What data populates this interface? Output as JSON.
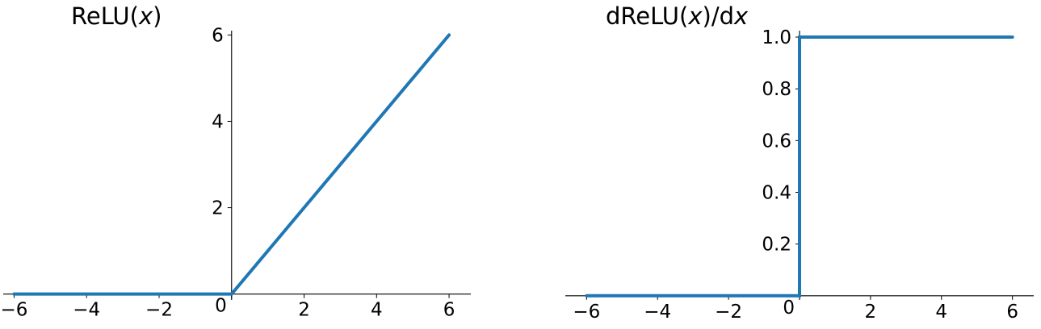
{
  "chart_data": [
    {
      "type": "line",
      "title": "ReLU(x)",
      "title_parts": [
        {
          "text": "ReLU(",
          "italic": false
        },
        {
          "text": "x",
          "italic": true
        },
        {
          "text": ")",
          "italic": false
        }
      ],
      "xlim": [
        -6.3,
        6.6
      ],
      "ylim": [
        -0.1,
        6.25
      ],
      "x_ticks": [
        {
          "value": -6,
          "label": "−6"
        },
        {
          "value": -4,
          "label": "−4"
        },
        {
          "value": -2,
          "label": "−2"
        },
        {
          "value": 0,
          "label": "0"
        },
        {
          "value": 2,
          "label": "2"
        },
        {
          "value": 4,
          "label": "4"
        },
        {
          "value": 6,
          "label": "6"
        }
      ],
      "y_ticks": [
        {
          "value": 2,
          "label": "2"
        },
        {
          "value": 4,
          "label": "4"
        },
        {
          "value": 6,
          "label": "6"
        }
      ],
      "series": [
        {
          "x": [
            -6,
            0,
            6
          ],
          "y": [
            0,
            0,
            6
          ],
          "color": "#1f77b4"
        }
      ],
      "spines": "centered at origin",
      "grid": false
    },
    {
      "type": "line",
      "title": "dReLU(x)/dx",
      "title_parts": [
        {
          "text": "dReLU(",
          "italic": false
        },
        {
          "text": "x",
          "italic": true
        },
        {
          "text": ")/d",
          "italic": false
        },
        {
          "text": "x",
          "italic": true
        }
      ],
      "xlim": [
        -6.6,
        6.6
      ],
      "ylim": [
        -0.01,
        1.05
      ],
      "x_ticks": [
        {
          "value": -6,
          "label": "−6"
        },
        {
          "value": -4,
          "label": "−4"
        },
        {
          "value": -2,
          "label": "−2"
        },
        {
          "value": 0,
          "label": "0"
        },
        {
          "value": 2,
          "label": "2"
        },
        {
          "value": 4,
          "label": "4"
        },
        {
          "value": 6,
          "label": "6"
        }
      ],
      "y_ticks": [
        {
          "value": 0.2,
          "label": "0.2"
        },
        {
          "value": 0.4,
          "label": "0.4"
        },
        {
          "value": 0.6,
          "label": "0.6"
        },
        {
          "value": 0.8,
          "label": "0.8"
        },
        {
          "value": 1.0,
          "label": "1.0"
        }
      ],
      "series": [
        {
          "x": [
            -6,
            0,
            0,
            6
          ],
          "y": [
            0,
            0,
            1,
            1
          ],
          "color": "#1f77b4"
        }
      ],
      "spines": "centered at origin",
      "grid": false
    }
  ]
}
